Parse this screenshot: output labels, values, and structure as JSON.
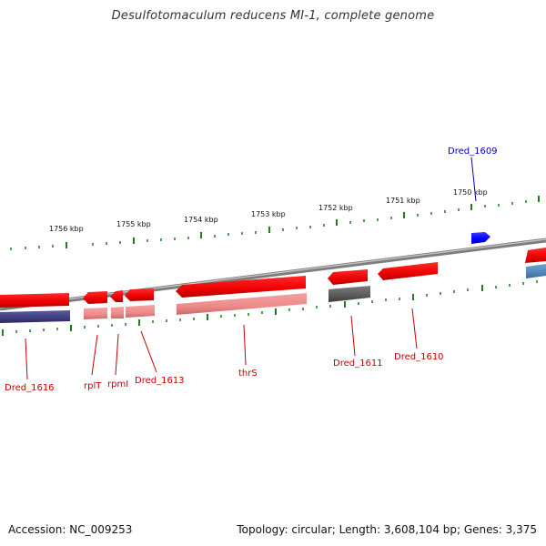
{
  "title": "Desulfotomaculum reducens MI-1, complete genome",
  "footer": {
    "accession": "Accession: NC_009253",
    "summary": "Topology: circular; Length: 3,608,104 bp; Genes: 3,375"
  },
  "colors": {
    "backbone": "#8a8a8a",
    "tick": "#1e7d1e",
    "cds_forward": "#ff0000",
    "cds_reverse": "#ff0000",
    "cog_pink": "#f08a8a",
    "cog_navy": "#3d3d7e",
    "cog_gray": "#606060",
    "cog_steel": "#4f86b8",
    "rna_blue": "#0000ff",
    "label_red": "#c00000",
    "label_blue": "#0000b0"
  },
  "ticks": [
    {
      "label": "1756 kbp"
    },
    {
      "label": "1755 kbp"
    },
    {
      "label": "1754 kbp"
    },
    {
      "label": "1753 kbp"
    },
    {
      "label": "1752 kbp"
    },
    {
      "label": "1751 kbp"
    },
    {
      "label": "1750 kbp"
    }
  ],
  "genes": [
    {
      "name": "Dred_1616",
      "color": "label_red"
    },
    {
      "name": "rplT",
      "color": "label_red"
    },
    {
      "name": "rpmI",
      "color": "label_red"
    },
    {
      "name": "Dred_1613",
      "color": "label_red"
    },
    {
      "name": "thrS",
      "color": "label_red"
    },
    {
      "name": "Dred_1611",
      "color": "label_red"
    },
    {
      "name": "Dred_1610",
      "color": "label_red"
    },
    {
      "name": "Dred_1609",
      "color": "label_blue"
    }
  ]
}
